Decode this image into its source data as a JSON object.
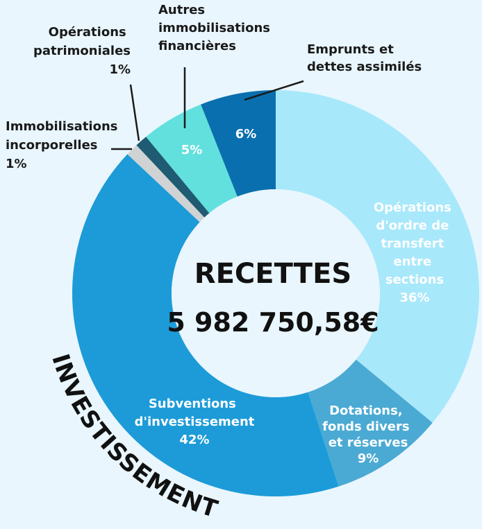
{
  "chart_data": {
    "type": "donut",
    "title": "RECETTES",
    "subtitle": "5 982 750,58€",
    "section_label": "INVESTISSEMENT",
    "categories": [
      "Opérations d'ordre de transfert entre sections",
      "Dotations, fonds divers et réserves",
      "Subventions d'investissement",
      "Immobilisations incorporelles",
      "Opérations patrimoniales",
      "Autres immobilisations financières",
      "Emprunts et dettes assimilés"
    ],
    "values": [
      36,
      9,
      42,
      1,
      1,
      5,
      6
    ],
    "value_labels": [
      "36%",
      "9%",
      "42%",
      "1%",
      "1%",
      "5%",
      "6%"
    ],
    "colors": [
      "#a8e8fb",
      "#4aaad3",
      "#1d9bd8",
      "#cfd3d4",
      "#1f5b72",
      "#62e0de",
      "#0a6fae"
    ]
  }
}
